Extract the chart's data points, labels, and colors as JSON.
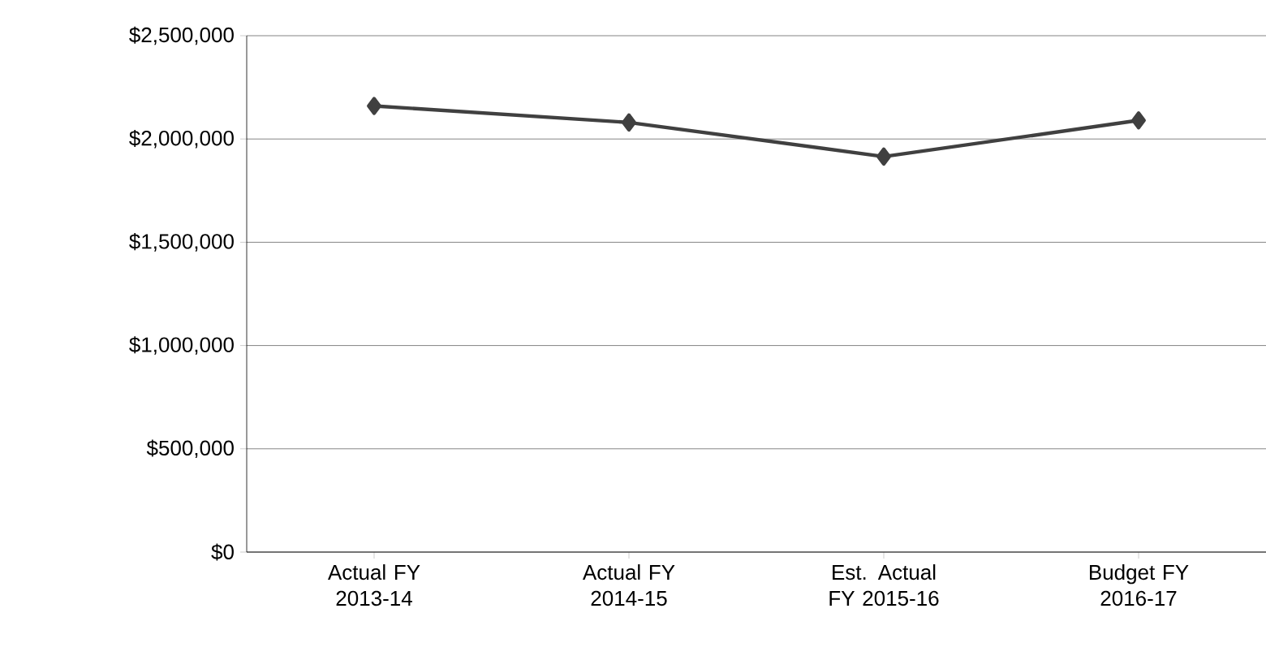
{
  "chart_data": {
    "type": "line",
    "categories": [
      "Actual FY 2013-14",
      "Actual FY 2014-15",
      "Est. Actual FY 2015-16",
      "Budget FY 2016-17"
    ],
    "series": [
      {
        "color": "#404040",
        "values": [
          2160000,
          2080000,
          1915000,
          2090000
        ]
      }
    ],
    "ylim": [
      0,
      2500000
    ],
    "yticks": [
      {
        "value": 0,
        "label": "$0"
      },
      {
        "value": 500000,
        "label": "$500,000"
      },
      {
        "value": 1000000,
        "label": "$1,000,000"
      },
      {
        "value": 1500000,
        "label": "$1,500,000"
      },
      {
        "value": 2000000,
        "label": "$2,000,000"
      },
      {
        "value": 2500000,
        "label": "$2,500,000"
      }
    ],
    "grid": "y",
    "marker": "diamond"
  }
}
